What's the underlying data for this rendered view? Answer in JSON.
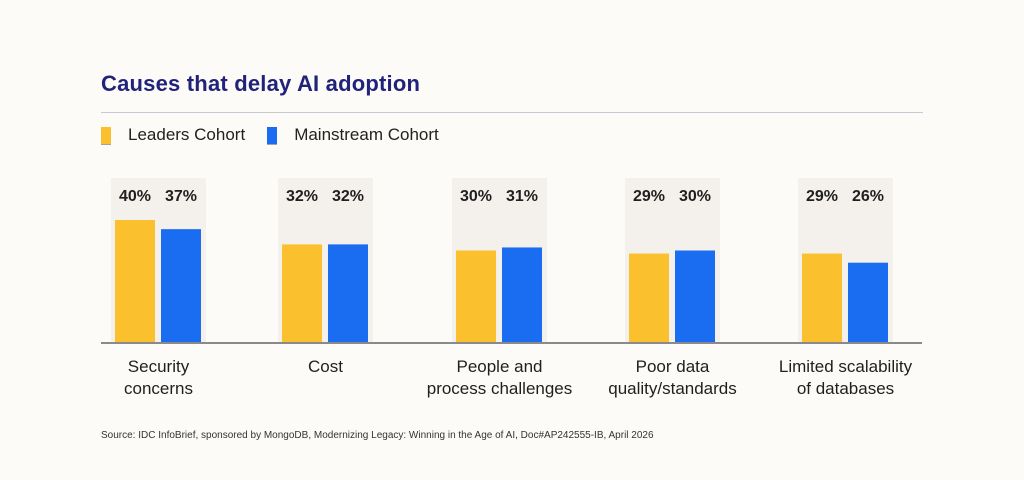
{
  "chart_data": {
    "type": "bar",
    "title": "Causes that delay AI adoption",
    "categories": [
      [
        "Security",
        "concerns"
      ],
      [
        "Cost"
      ],
      [
        "People and",
        "process challenges"
      ],
      [
        "Poor data",
        "quality/standards"
      ],
      [
        "Limited scalability",
        "of databases"
      ]
    ],
    "series": [
      {
        "name": "Leaders Cohort",
        "color": "#fbc02d",
        "values": [
          40,
          32,
          30,
          29,
          29
        ]
      },
      {
        "name": "Mainstream Cohort",
        "color": "#1a6cf0",
        "values": [
          37,
          32,
          31,
          30,
          26
        ]
      }
    ],
    "value_suffix": "%",
    "xlabel": "",
    "ylabel": "",
    "ylim": [
      0,
      40
    ],
    "grid": false,
    "legend": "top-left",
    "panel_color": "#f4f1ed",
    "axis_color": "#8a8a8a"
  },
  "source": "Source: IDC InfoBrief, sponsored by MongoDB,  Modernizing Legacy: Winning in the Age of AI, Doc#AP242555-IB, April 2026"
}
